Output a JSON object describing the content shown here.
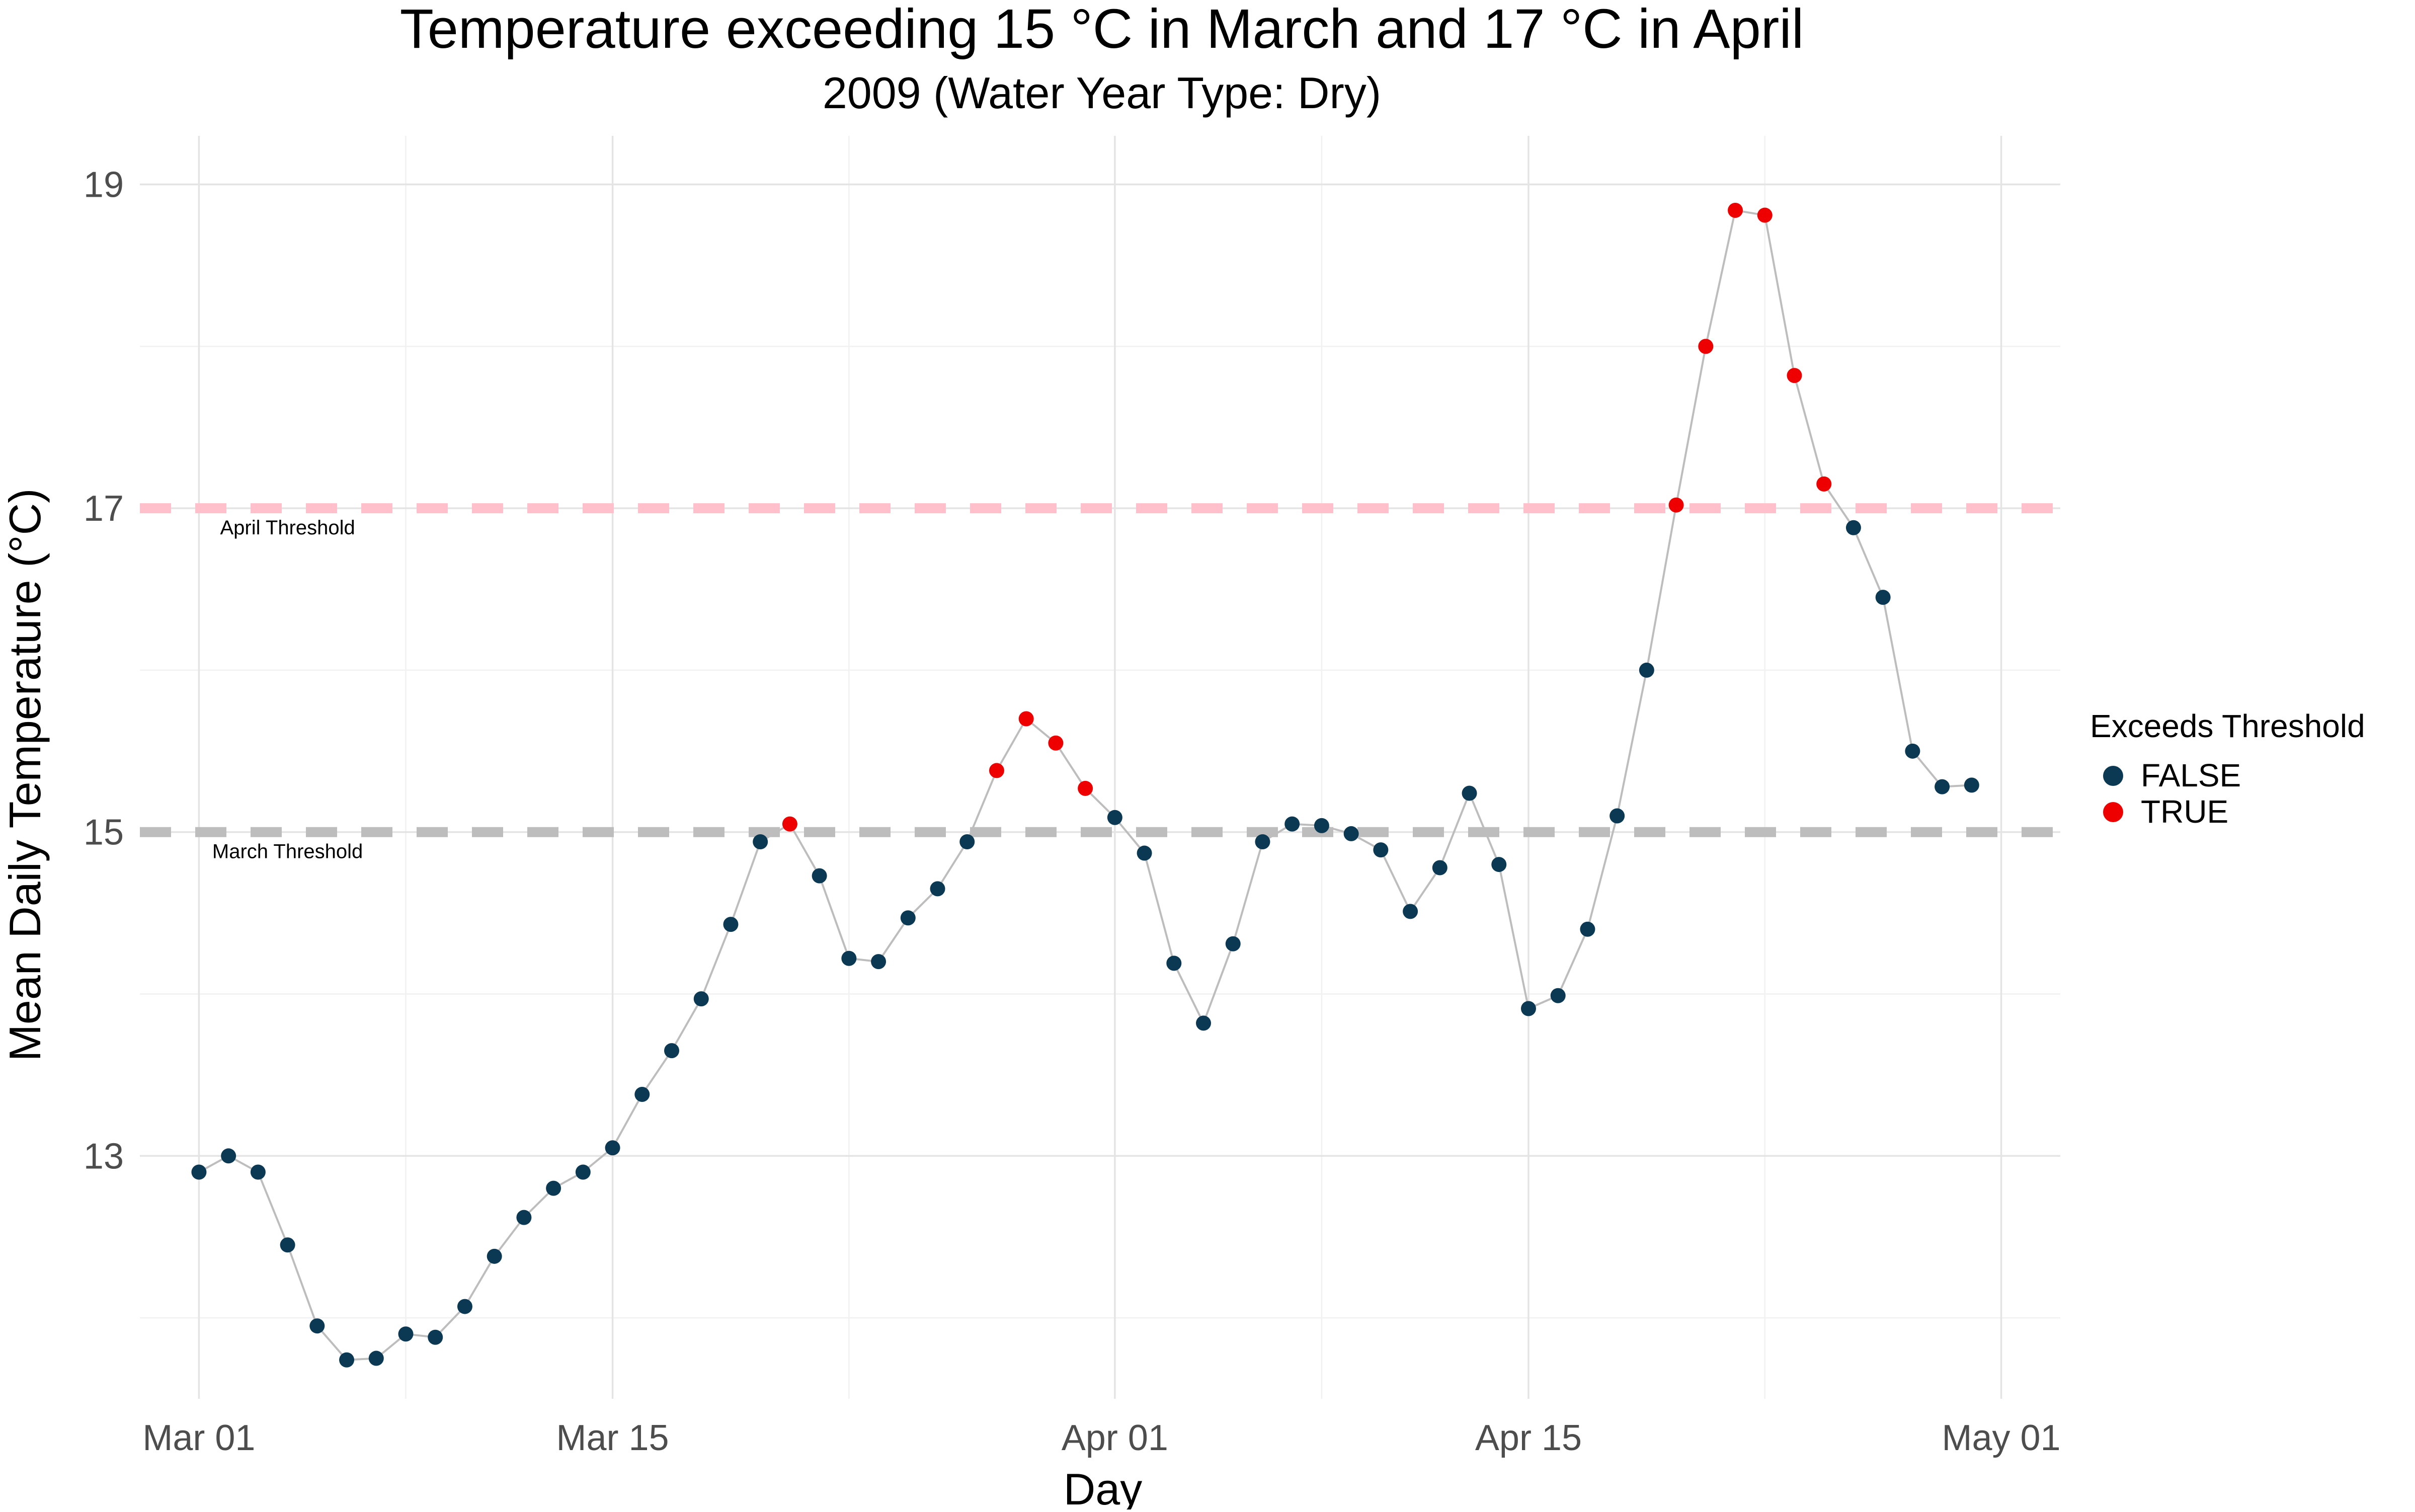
{
  "chart_data": {
    "type": "scatter",
    "title": "Temperature exceeding 15 °C in March and 17 °C in April",
    "subtitle": "2009 (Water Year Type: Dry)",
    "xlabel": "Day",
    "ylabel": "Mean Daily Temperature (°C)",
    "xlim": [
      "2009-02-27",
      "2009-05-03"
    ],
    "ylim": [
      11.5,
      19.3
    ],
    "x_ticks": [
      {
        "value": "2009-03-01",
        "label": "Mar 01"
      },
      {
        "value": "2009-03-15",
        "label": "Mar 15"
      },
      {
        "value": "2009-04-01",
        "label": "Apr 01"
      },
      {
        "value": "2009-04-15",
        "label": "Apr 15"
      },
      {
        "value": "2009-05-01",
        "label": "May 01"
      }
    ],
    "x_minor_gridlines": [
      "2009-03-08",
      "2009-03-23",
      "2009-04-08",
      "2009-04-23"
    ],
    "y_ticks": [
      {
        "value": 13,
        "label": "13"
      },
      {
        "value": 15,
        "label": "15"
      },
      {
        "value": 17,
        "label": "17"
      },
      {
        "value": 19,
        "label": "19"
      }
    ],
    "y_minor_gridlines": [
      12,
      14,
      16,
      18
    ],
    "grid": true,
    "legend": {
      "title": "Exceeds Threshold",
      "placement": "right",
      "entries": [
        {
          "label": "FALSE",
          "color": "#0b3954"
        },
        {
          "label": "TRUE",
          "color": "#ee0000"
        }
      ]
    },
    "thresholds": [
      {
        "label": "April Threshold",
        "value": 17,
        "color": "#ffc0cb"
      },
      {
        "label": "March Threshold",
        "value": 15,
        "color": "#bdbdbd"
      }
    ],
    "line_color": "#bdbdbd",
    "points": [
      {
        "x": "2009-03-01",
        "y": 12.9,
        "exceeds": false
      },
      {
        "x": "2009-03-02",
        "y": 13.0,
        "exceeds": false
      },
      {
        "x": "2009-03-03",
        "y": 12.9,
        "exceeds": false
      },
      {
        "x": "2009-03-04",
        "y": 12.45,
        "exceeds": false
      },
      {
        "x": "2009-03-05",
        "y": 11.95,
        "exceeds": false
      },
      {
        "x": "2009-03-06",
        "y": 11.74,
        "exceeds": false
      },
      {
        "x": "2009-03-07",
        "y": 11.75,
        "exceeds": false
      },
      {
        "x": "2009-03-08",
        "y": 11.9,
        "exceeds": false
      },
      {
        "x": "2009-03-09",
        "y": 11.88,
        "exceeds": false
      },
      {
        "x": "2009-03-10",
        "y": 12.07,
        "exceeds": false
      },
      {
        "x": "2009-03-11",
        "y": 12.38,
        "exceeds": false
      },
      {
        "x": "2009-03-12",
        "y": 12.62,
        "exceeds": false
      },
      {
        "x": "2009-03-13",
        "y": 12.8,
        "exceeds": false
      },
      {
        "x": "2009-03-14",
        "y": 12.9,
        "exceeds": false
      },
      {
        "x": "2009-03-15",
        "y": 13.05,
        "exceeds": false
      },
      {
        "x": "2009-03-16",
        "y": 13.38,
        "exceeds": false
      },
      {
        "x": "2009-03-17",
        "y": 13.65,
        "exceeds": false
      },
      {
        "x": "2009-03-18",
        "y": 13.97,
        "exceeds": false
      },
      {
        "x": "2009-03-19",
        "y": 14.43,
        "exceeds": false
      },
      {
        "x": "2009-03-20",
        "y": 14.94,
        "exceeds": false
      },
      {
        "x": "2009-03-21",
        "y": 15.05,
        "exceeds": true
      },
      {
        "x": "2009-03-22",
        "y": 14.73,
        "exceeds": false
      },
      {
        "x": "2009-03-23",
        "y": 14.22,
        "exceeds": false
      },
      {
        "x": "2009-03-24",
        "y": 14.2,
        "exceeds": false
      },
      {
        "x": "2009-03-25",
        "y": 14.47,
        "exceeds": false
      },
      {
        "x": "2009-03-26",
        "y": 14.65,
        "exceeds": false
      },
      {
        "x": "2009-03-27",
        "y": 14.94,
        "exceeds": false
      },
      {
        "x": "2009-03-28",
        "y": 15.38,
        "exceeds": true
      },
      {
        "x": "2009-03-29",
        "y": 15.7,
        "exceeds": true
      },
      {
        "x": "2009-03-30",
        "y": 15.55,
        "exceeds": true
      },
      {
        "x": "2009-03-31",
        "y": 15.27,
        "exceeds": true
      },
      {
        "x": "2009-04-01",
        "y": 15.09,
        "exceeds": false
      },
      {
        "x": "2009-04-02",
        "y": 14.87,
        "exceeds": false
      },
      {
        "x": "2009-04-03",
        "y": 14.19,
        "exceeds": false
      },
      {
        "x": "2009-04-04",
        "y": 13.82,
        "exceeds": false
      },
      {
        "x": "2009-04-05",
        "y": 14.31,
        "exceeds": false
      },
      {
        "x": "2009-04-06",
        "y": 14.94,
        "exceeds": false
      },
      {
        "x": "2009-04-07",
        "y": 15.05,
        "exceeds": false
      },
      {
        "x": "2009-04-08",
        "y": 15.04,
        "exceeds": false
      },
      {
        "x": "2009-04-09",
        "y": 14.99,
        "exceeds": false
      },
      {
        "x": "2009-04-10",
        "y": 14.89,
        "exceeds": false
      },
      {
        "x": "2009-04-11",
        "y": 14.51,
        "exceeds": false
      },
      {
        "x": "2009-04-12",
        "y": 14.78,
        "exceeds": false
      },
      {
        "x": "2009-04-13",
        "y": 15.24,
        "exceeds": false
      },
      {
        "x": "2009-04-14",
        "y": 14.8,
        "exceeds": false
      },
      {
        "x": "2009-04-15",
        "y": 13.91,
        "exceeds": false
      },
      {
        "x": "2009-04-16",
        "y": 13.99,
        "exceeds": false
      },
      {
        "x": "2009-04-17",
        "y": 14.4,
        "exceeds": false
      },
      {
        "x": "2009-04-18",
        "y": 15.1,
        "exceeds": false
      },
      {
        "x": "2009-04-19",
        "y": 16.0,
        "exceeds": false
      },
      {
        "x": "2009-04-20",
        "y": 17.02,
        "exceeds": true
      },
      {
        "x": "2009-04-21",
        "y": 18.0,
        "exceeds": true
      },
      {
        "x": "2009-04-22",
        "y": 18.84,
        "exceeds": true
      },
      {
        "x": "2009-04-23",
        "y": 18.81,
        "exceeds": true
      },
      {
        "x": "2009-04-24",
        "y": 17.82,
        "exceeds": true
      },
      {
        "x": "2009-04-25",
        "y": 17.15,
        "exceeds": true
      },
      {
        "x": "2009-04-26",
        "y": 16.88,
        "exceeds": false
      },
      {
        "x": "2009-04-27",
        "y": 16.45,
        "exceeds": false
      },
      {
        "x": "2009-04-28",
        "y": 15.5,
        "exceeds": false
      },
      {
        "x": "2009-04-29",
        "y": 15.28,
        "exceeds": false
      },
      {
        "x": "2009-04-30",
        "y": 15.29,
        "exceeds": false
      }
    ]
  }
}
